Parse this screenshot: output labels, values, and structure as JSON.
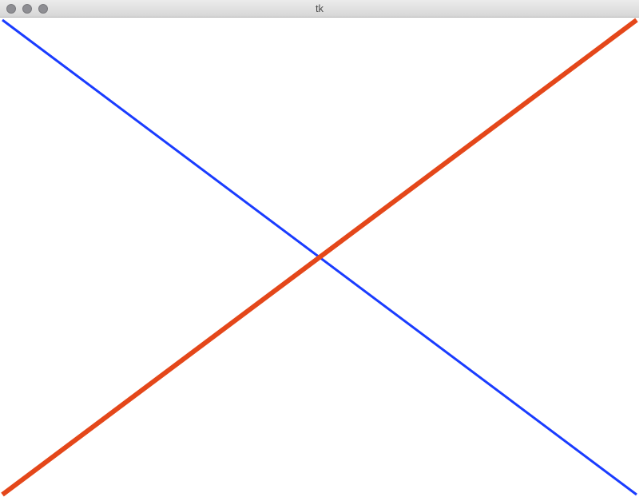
{
  "window": {
    "title": "tk",
    "buttons": {
      "close": "close-icon",
      "minimize": "minimize-icon",
      "zoom": "zoom-icon"
    }
  },
  "canvas": {
    "background": "#ffffff",
    "lines": [
      {
        "name": "blue-line",
        "color": "#1a3cff"
      },
      {
        "name": "orange-line",
        "color": "#e4471a"
      }
    ]
  }
}
